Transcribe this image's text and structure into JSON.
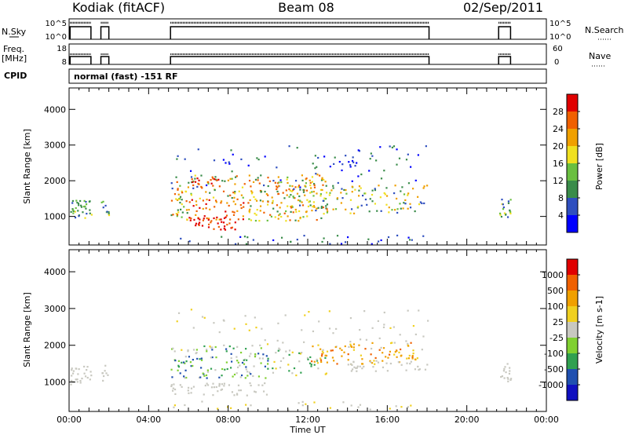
{
  "header": {
    "station": "Kodiak (fitACF)",
    "beam": "Beam 08",
    "date": "02/Sep/2011"
  },
  "left_labels": {
    "nsky": "N.Sky",
    "freq": "Freq.",
    "freq_unit": "[MHz]",
    "cpid": "CPID"
  },
  "right_labels": {
    "nsearch": "N.Search",
    "nave": "Nave"
  },
  "nsky_ticks": [
    "10^5",
    "10^0"
  ],
  "nsearch_ticks": [
    "10^5",
    "10^0"
  ],
  "freq_ticks": [
    "18",
    "8"
  ],
  "nave_ticks": [
    "60",
    "0"
  ],
  "cpid_text": "normal (fast) -151 RF",
  "colors": {
    "power": [
      "#0000ff",
      "#2f4fbf",
      "#3a8c4a",
      "#6abf40",
      "#f0e020",
      "#f0a000",
      "#f06000",
      "#e00000"
    ],
    "velocity": [
      "#1010c0",
      "#2050b0",
      "#30a050",
      "#80d030",
      "#c8c8c0",
      "#f0d020",
      "#f0a000",
      "#f06000",
      "#e00000"
    ]
  },
  "chart_data": [
    {
      "type": "heatmap",
      "title": "",
      "xlabel": "Time UT",
      "ylabel": "Slant Range [km]",
      "xlim": [
        0,
        24
      ],
      "ylim": [
        200,
        4600
      ],
      "x_ticks": [
        "00:00",
        "04:00",
        "08:00",
        "12:00",
        "16:00",
        "20:00",
        "00:00"
      ],
      "y_ticks": [
        1000,
        2000,
        3000,
        4000
      ],
      "colorbar_label": "Power [dB]",
      "colorbar_ticks": [
        4,
        8,
        12,
        16,
        20,
        24,
        28
      ],
      "data_gaps_hours": [
        [
          1.1,
          1.6
        ],
        [
          2.0,
          5.1
        ],
        [
          18.1,
          21.6
        ],
        [
          22.2,
          24.0
        ]
      ]
    },
    {
      "type": "heatmap",
      "title": "",
      "xlabel": "Time UT",
      "ylabel": "Slant Range [km]",
      "xlim": [
        0,
        24
      ],
      "ylim": [
        200,
        4600
      ],
      "x_ticks": [
        "00:00",
        "04:00",
        "08:00",
        "12:00",
        "16:00",
        "20:00",
        "00:00"
      ],
      "y_ticks": [
        1000,
        2000,
        3000,
        4000
      ],
      "colorbar_label": "Velocity [m s-1]",
      "colorbar_ticks": [
        1000,
        500,
        100,
        25,
        -25,
        -100,
        -500,
        -1000
      ]
    }
  ],
  "time_axis_label": "Time UT"
}
